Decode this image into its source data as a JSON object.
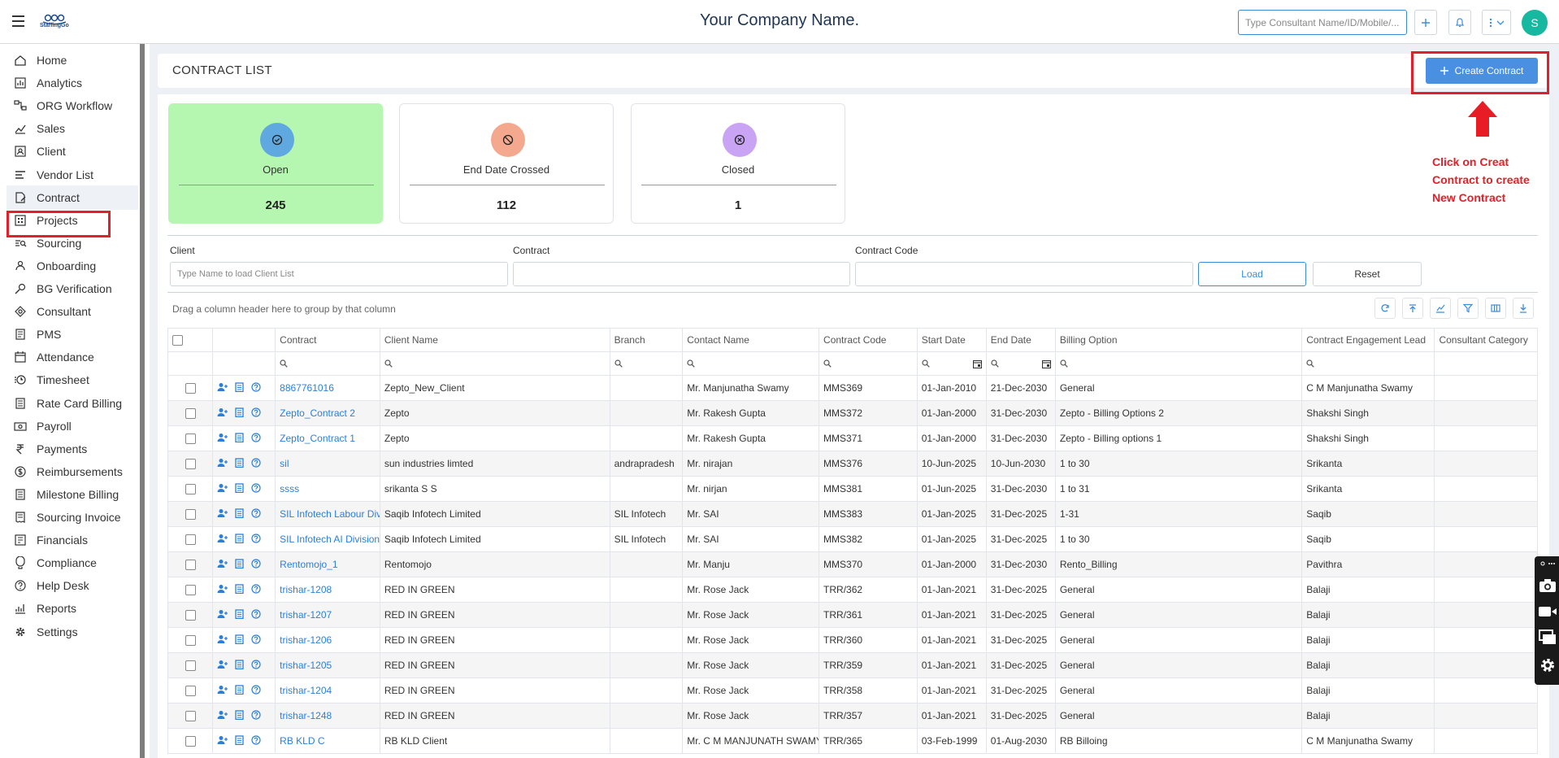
{
  "app": {
    "company_name": "Your Company Name.",
    "logo_text": "StaffingGo",
    "search_placeholder": "Type Consultant Name/ID/Mobile/...",
    "avatar_initial": "S"
  },
  "sidebar": {
    "items": [
      {
        "label": "Home",
        "icon": "home-icon"
      },
      {
        "label": "Analytics",
        "icon": "analytics-icon"
      },
      {
        "label": "ORG Workflow",
        "icon": "workflow-icon"
      },
      {
        "label": "Sales",
        "icon": "sales-icon"
      },
      {
        "label": "Client",
        "icon": "client-icon"
      },
      {
        "label": "Vendor List",
        "icon": "vendor-list-icon"
      },
      {
        "label": "Contract",
        "icon": "contract-icon"
      },
      {
        "label": "Projects",
        "icon": "projects-icon"
      },
      {
        "label": "Sourcing",
        "icon": "sourcing-icon"
      },
      {
        "label": "Onboarding",
        "icon": "onboarding-icon"
      },
      {
        "label": "BG Verification",
        "icon": "bg-verification-icon"
      },
      {
        "label": "Consultant",
        "icon": "consultant-icon"
      },
      {
        "label": "PMS",
        "icon": "pms-icon"
      },
      {
        "label": "Attendance",
        "icon": "attendance-icon"
      },
      {
        "label": "Timesheet",
        "icon": "timesheet-icon"
      },
      {
        "label": "Rate Card Billing",
        "icon": "rate-card-icon"
      },
      {
        "label": "Payroll",
        "icon": "payroll-icon"
      },
      {
        "label": "Payments",
        "icon": "rupee-icon"
      },
      {
        "label": "Reimbursements",
        "icon": "reimbursement-icon"
      },
      {
        "label": "Milestone Billing",
        "icon": "milestone-icon"
      },
      {
        "label": "Sourcing Invoice",
        "icon": "invoice-icon"
      },
      {
        "label": "Financials",
        "icon": "financials-icon"
      },
      {
        "label": "Compliance",
        "icon": "compliance-icon"
      },
      {
        "label": "Help Desk",
        "icon": "help-icon"
      },
      {
        "label": "Reports",
        "icon": "reports-icon"
      },
      {
        "label": "Settings",
        "icon": "settings-icon"
      }
    ],
    "active": "Contract"
  },
  "page": {
    "title": "CONTRACT LIST",
    "create_button": "Create Contract",
    "annotation": "Click on Creat Contract to create New Contract"
  },
  "stats": [
    {
      "label": "Open",
      "value": "245",
      "color": "#5fa8e0"
    },
    {
      "label": "End Date Crossed",
      "value": "112",
      "color": "#f4a98e"
    },
    {
      "label": "Closed",
      "value": "1",
      "color": "#c9a4f4"
    }
  ],
  "filters": {
    "client_label": "Client",
    "client_placeholder": "Type Name to load Client List",
    "contract_label": "Contract",
    "contract_value": "",
    "contract_code_label": "Contract Code",
    "contract_code_value": "",
    "load_button": "Load",
    "reset_button": "Reset"
  },
  "grid": {
    "group_hint": "Drag a column header here to group by that column",
    "columns": [
      "Contract",
      "Client Name",
      "Branch",
      "Contact Name",
      "Contract Code",
      "Start Date",
      "End Date",
      "Billing Option",
      "Contract Engagement Lead",
      "Consultant Category"
    ],
    "rows": [
      [
        "8867761016",
        "Zepto_New_Client",
        "",
        "Mr. Manjunatha Swamy",
        "MMS369",
        "01-Jan-2010",
        "21-Dec-2030",
        "General",
        "C M Manjunatha Swamy",
        ""
      ],
      [
        "Zepto_Contract 2",
        "Zepto",
        "",
        "Mr. Rakesh Gupta",
        "MMS372",
        "01-Jan-2000",
        "31-Dec-2030",
        "Zepto - Billing Options 2",
        "Shakshi Singh",
        ""
      ],
      [
        "Zepto_Contract 1",
        "Zepto",
        "",
        "Mr. Rakesh Gupta",
        "MMS371",
        "01-Jan-2000",
        "31-Dec-2030",
        "Zepto - Billing options 1",
        "Shakshi Singh",
        ""
      ],
      [
        "sil",
        "sun industries limted",
        "andrapradesh",
        "Mr. nirajan",
        "MMS376",
        "10-Jun-2025",
        "10-Jun-2030",
        "1 to 30",
        "Srikanta",
        ""
      ],
      [
        "ssss",
        "srikanta S S",
        "",
        "Mr. nirjan",
        "MMS381",
        "01-Jun-2025",
        "31-Dec-2030",
        "1 to 31",
        "Srikanta",
        ""
      ],
      [
        "SIL Infotech Labour Div",
        "Saqib Infotech Limited",
        "SIL Infotech",
        "Mr. SAI",
        "MMS383",
        "01-Jan-2025",
        "31-Dec-2025",
        "1-31",
        "Saqib",
        ""
      ],
      [
        "SIL Infotech AI Division",
        "Saqib Infotech Limited",
        "SIL Infotech",
        "Mr. SAI",
        "MMS382",
        "01-Jan-2025",
        "31-Dec-2025",
        "1 to 30",
        "Saqib",
        ""
      ],
      [
        "Rentomojo_1",
        "Rentomojo",
        "",
        "Mr. Manju",
        "MMS370",
        "01-Jan-2000",
        "31-Dec-2030",
        "Rento_Billing",
        "Pavithra",
        ""
      ],
      [
        "trishar-1208",
        "RED IN GREEN",
        "",
        "Mr. Rose Jack",
        "TRR/362",
        "01-Jan-2021",
        "31-Dec-2025",
        "General",
        "Balaji",
        ""
      ],
      [
        "trishar-1207",
        "RED IN GREEN",
        "",
        "Mr. Rose Jack",
        "TRR/361",
        "01-Jan-2021",
        "31-Dec-2025",
        "General",
        "Balaji",
        ""
      ],
      [
        "trishar-1206",
        "RED IN GREEN",
        "",
        "Mr. Rose Jack",
        "TRR/360",
        "01-Jan-2021",
        "31-Dec-2025",
        "General",
        "Balaji",
        ""
      ],
      [
        "trishar-1205",
        "RED IN GREEN",
        "",
        "Mr. Rose Jack",
        "TRR/359",
        "01-Jan-2021",
        "31-Dec-2025",
        "General",
        "Balaji",
        ""
      ],
      [
        "trishar-1204",
        "RED IN GREEN",
        "",
        "Mr. Rose Jack",
        "TRR/358",
        "01-Jan-2021",
        "31-Dec-2025",
        "General",
        "Balaji",
        ""
      ],
      [
        "trishar-1248",
        "RED IN GREEN",
        "",
        "Mr. Rose Jack",
        "TRR/357",
        "01-Jan-2021",
        "31-Dec-2025",
        "General",
        "Balaji",
        ""
      ],
      [
        "RB KLD C",
        "RB KLD Client",
        "",
        "Mr. C M MANJUNATH SWAMY",
        "TRR/365",
        "03-Feb-1999",
        "01-Aug-2030",
        "RB Billoing",
        "C M Manjunatha Swamy",
        ""
      ]
    ]
  },
  "colors": {
    "accent": "#4a90e2",
    "link": "#2b7fd8",
    "highlight": "#e0202a",
    "open_card": "#b5f7b0",
    "avatar": "#17b8a0"
  }
}
